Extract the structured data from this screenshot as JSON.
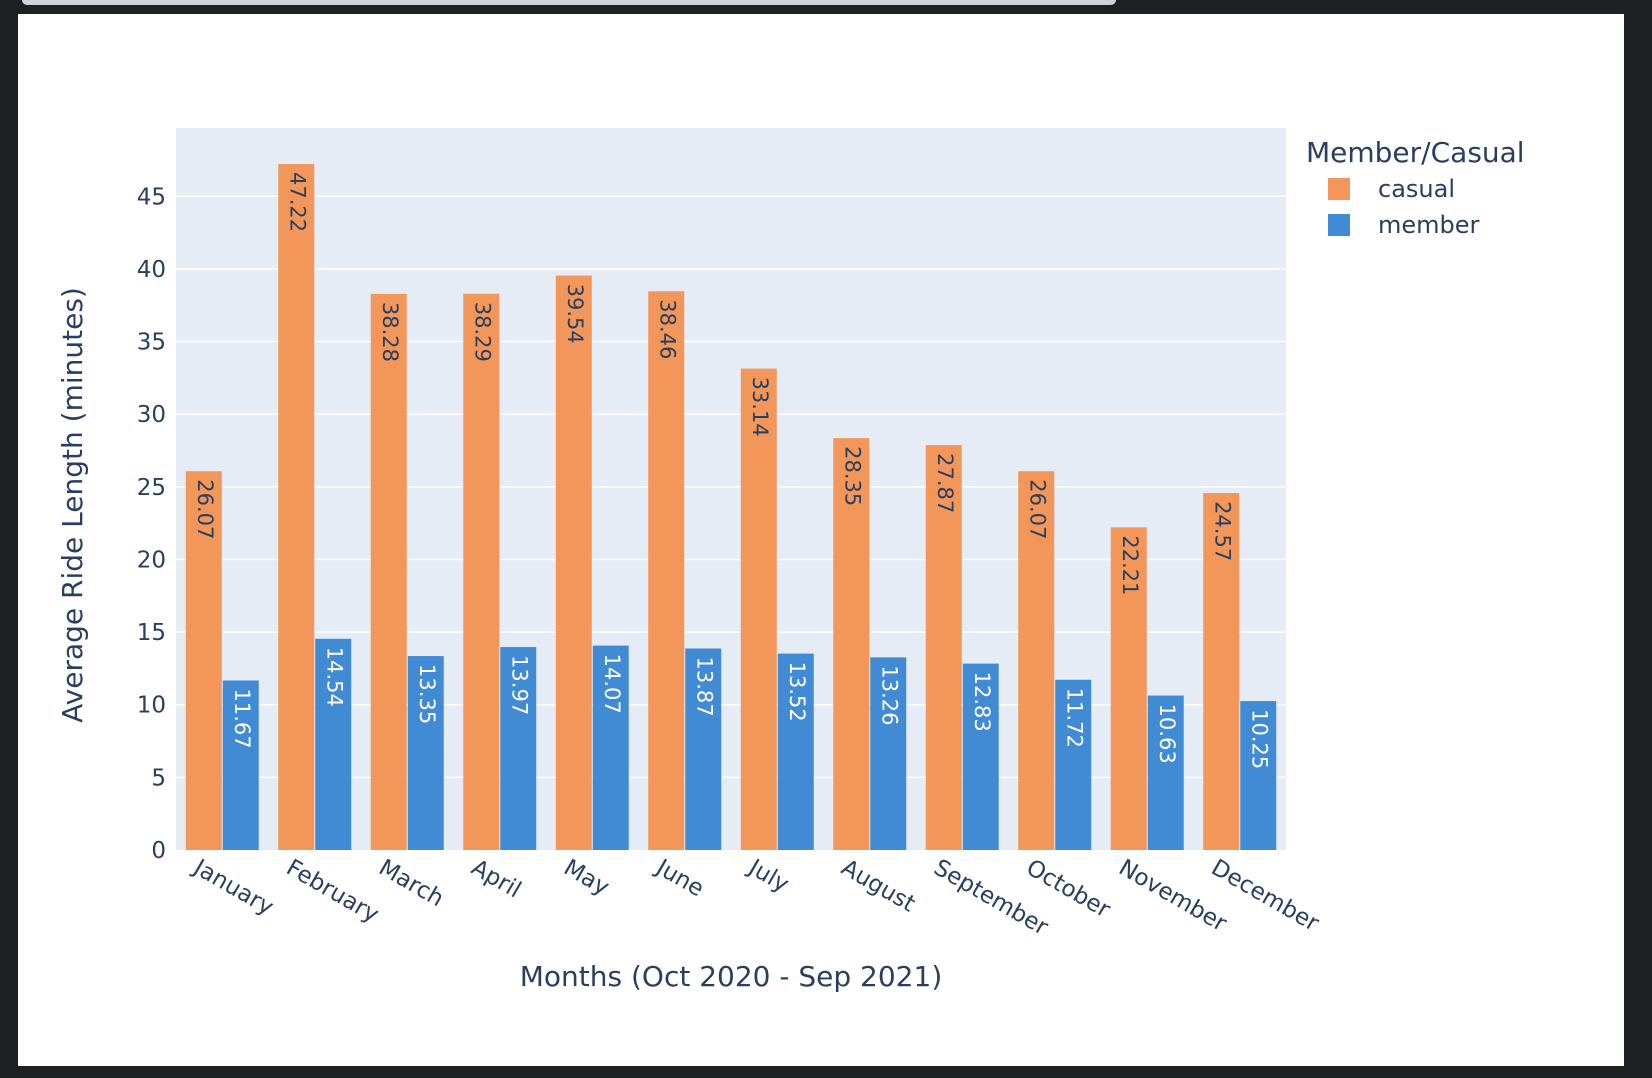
{
  "chart_data": {
    "type": "bar",
    "categories": [
      "January",
      "February",
      "March",
      "April",
      "May",
      "June",
      "July",
      "August",
      "September",
      "October",
      "November",
      "December"
    ],
    "series": [
      {
        "name": "casual",
        "color": "#f2965a",
        "label_color": "#2a3f5f",
        "values": [
          26.07,
          47.22,
          38.28,
          38.29,
          39.54,
          38.46,
          33.14,
          28.35,
          27.87,
          26.07,
          22.21,
          24.57
        ]
      },
      {
        "name": "member",
        "color": "#418bd4",
        "label_color": "#ffffff",
        "values": [
          11.67,
          14.54,
          13.35,
          13.97,
          14.07,
          13.87,
          13.52,
          13.26,
          12.83,
          11.72,
          10.63,
          10.25
        ]
      }
    ],
    "xlabel": "Months (Oct 2020 - Sep 2021)",
    "ylabel": "Average Ride Length (minutes)",
    "ylim": [
      0,
      49.7
    ],
    "yticks": [
      0,
      5,
      10,
      15,
      20,
      25,
      30,
      35,
      40,
      45
    ],
    "legend": {
      "title": "Member/Casual",
      "placement": "top-right"
    },
    "grid": true,
    "plot_background": "#e5ecf6"
  }
}
